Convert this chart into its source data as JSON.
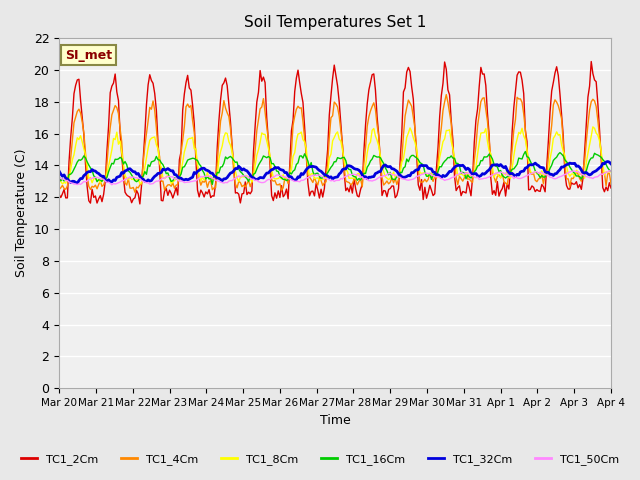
{
  "title": "Soil Temperatures Set 1",
  "xlabel": "Time",
  "ylabel": "Soil Temperature (C)",
  "annotation": "SI_met",
  "ylim": [
    0,
    22
  ],
  "yticks": [
    0,
    2,
    4,
    6,
    8,
    10,
    12,
    14,
    16,
    18,
    20,
    22
  ],
  "series_labels": [
    "TC1_2Cm",
    "TC1_4Cm",
    "TC1_8Cm",
    "TC1_16Cm",
    "TC1_32Cm",
    "TC1_50Cm"
  ],
  "series_colors": [
    "#dd0000",
    "#ff8800",
    "#ffff00",
    "#00cc00",
    "#0000dd",
    "#ff88ff"
  ],
  "line_widths": [
    1.0,
    1.0,
    1.0,
    1.0,
    2.0,
    1.0
  ],
  "background_color": "#e8e8e8",
  "plot_background": "#f0f0f0",
  "x_dates": [
    "Mar 20",
    "Mar 21",
    "Mar 22",
    "Mar 23",
    "Mar 24",
    "Mar 25",
    "Mar 26",
    "Mar 27",
    "Mar 28",
    "Mar 29",
    "Mar 30",
    "Mar 31",
    "Apr 1",
    "Apr 2",
    "Apr 3",
    "Apr 4"
  ],
  "num_points": 336
}
